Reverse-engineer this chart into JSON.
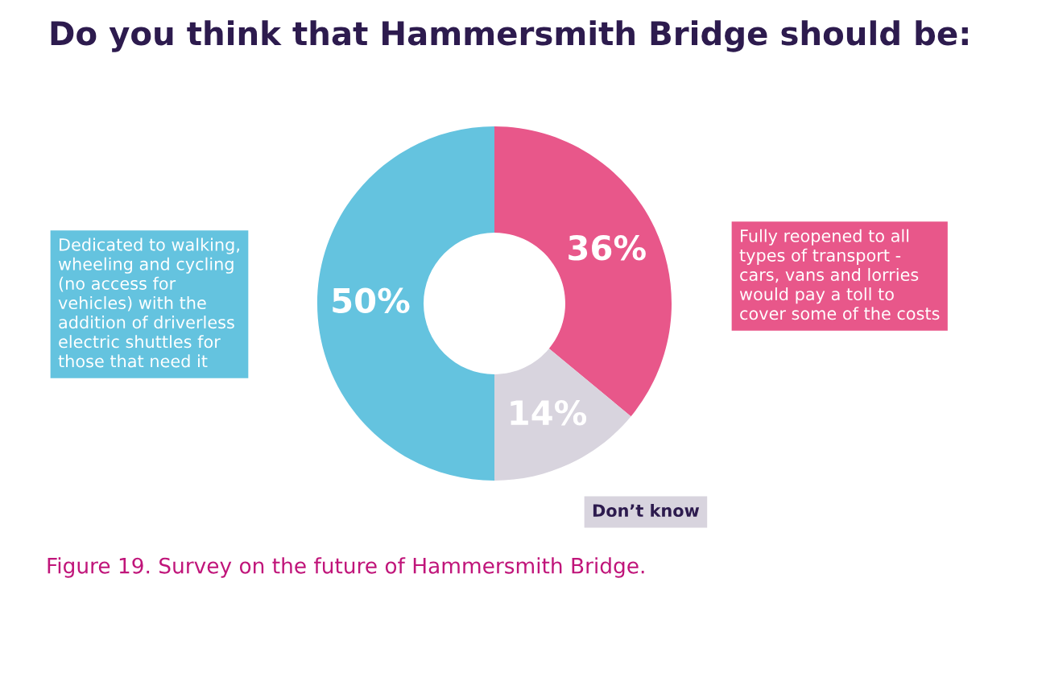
{
  "chart_data": {
    "type": "donut",
    "title": "Do you think that Hammersmith Bridge should be:",
    "categories": [
      "Fully reopened to all\ntypes of transport -\ncars, vans and lorries\nwould pay a toll to\ncover some of the costs",
      "Don’t know",
      "Dedicated to walking,\nwheeling and cycling\n(no access for\nvehicles) with the\naddition of driverless\nelectric shuttles for\nthose that need it"
    ],
    "values": [
      36,
      14,
      50
    ],
    "colors": [
      "#e8578a",
      "#d8d4de",
      "#64c3df"
    ],
    "value_labels": [
      "36%",
      "14%",
      "50%"
    ],
    "annotations": [
      "Figure 19. Survey on the future of Hammersmith Bridge."
    ],
    "legend": false
  }
}
